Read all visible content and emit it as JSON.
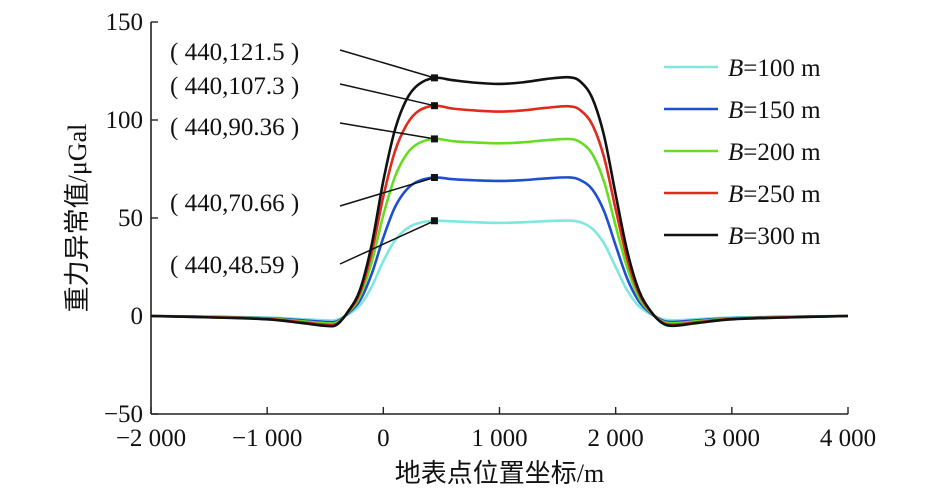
{
  "chart_data": {
    "type": "line",
    "title": "",
    "xlabel": "地表点位置坐标/m",
    "ylabel": "重力异常值/μGal",
    "xlim": [
      -2000,
      4000
    ],
    "ylim": [
      -50,
      150
    ],
    "xticks": [
      -2000,
      -1000,
      0,
      1000,
      2000,
      3000,
      4000
    ],
    "xtick_labels": [
      "−2 000",
      "−1 000",
      "0",
      "1 000",
      "2 000",
      "3 000",
      "4 000"
    ],
    "yticks": [
      -50,
      0,
      50,
      100,
      150
    ],
    "ytick_labels": [
      "−50",
      "0",
      "50",
      "100",
      "150"
    ],
    "grid": false,
    "legend_position": "top-right",
    "x": [
      -2000,
      -1500,
      -1000,
      -700,
      -500,
      -400,
      -300,
      -200,
      -100,
      0,
      100,
      200,
      300,
      440,
      600,
      800,
      1000,
      1200,
      1400,
      1600,
      1700,
      1800,
      1900,
      2000,
      2100,
      2200,
      2300,
      2400,
      2500,
      2700,
      3000,
      3500,
      4000
    ],
    "series": [
      {
        "name": "B=100 m",
        "color": "#7fe6e0",
        "values": [
          0,
          -0.3,
          -0.8,
          -1.6,
          -2.2,
          -2.0,
          1.0,
          5.5,
          15.0,
          28.0,
          38.5,
          44.5,
          47.3,
          48.59,
          48.3,
          47.8,
          47.5,
          47.8,
          48.4,
          48.7,
          47.8,
          44.5,
          37.0,
          25.0,
          13.0,
          5.0,
          1.0,
          -1.6,
          -2.2,
          -1.6,
          -0.8,
          -0.3,
          0
        ]
      },
      {
        "name": "B=150 m",
        "color": "#1f4fd1",
        "values": [
          0,
          -0.4,
          -1.1,
          -2.2,
          -3.0,
          -2.7,
          1.5,
          8.0,
          21.5,
          40.0,
          55.5,
          64.5,
          68.8,
          70.66,
          69.8,
          69.2,
          68.9,
          69.3,
          70.2,
          70.7,
          69.2,
          64.5,
          53.5,
          36.0,
          19.0,
          7.5,
          1.5,
          -2.2,
          -3.0,
          -2.2,
          -1.1,
          -0.4,
          0
        ]
      },
      {
        "name": "B=200 m",
        "color": "#66dd22",
        "values": [
          0,
          -0.5,
          -1.3,
          -2.7,
          -3.7,
          -3.3,
          1.9,
          10.2,
          27.5,
          51.5,
          71.0,
          82.5,
          88.0,
          90.36,
          89.2,
          88.5,
          88.1,
          88.6,
          89.7,
          90.3,
          88.5,
          82.5,
          68.5,
          46.0,
          24.5,
          9.5,
          1.9,
          -2.7,
          -3.7,
          -2.7,
          -1.3,
          -0.5,
          0
        ]
      },
      {
        "name": "B=250 m",
        "color": "#e02a1c",
        "values": [
          0,
          -0.6,
          -1.5,
          -3.2,
          -4.4,
          -3.9,
          2.3,
          12.0,
          32.5,
          61.0,
          84.0,
          97.5,
          104.5,
          107.3,
          105.8,
          104.8,
          104.3,
          104.9,
          106.2,
          107.0,
          104.8,
          97.5,
          81.0,
          54.5,
          29.0,
          11.5,
          2.3,
          -3.2,
          -4.4,
          -3.2,
          -1.5,
          -0.6,
          0
        ]
      },
      {
        "name": "B=300 m",
        "color": "#111111",
        "values": [
          0,
          -0.7,
          -1.7,
          -3.6,
          -5.0,
          -4.4,
          2.6,
          13.5,
          36.5,
          69.0,
          95.0,
          110.5,
          118.0,
          121.5,
          120.3,
          119.0,
          118.4,
          119.2,
          120.9,
          121.8,
          119.4,
          111.0,
          92.0,
          62.0,
          33.0,
          13.0,
          2.6,
          -3.6,
          -5.0,
          -3.6,
          -1.7,
          -0.7,
          0
        ]
      }
    ],
    "annotations": [
      {
        "text": "( 440,121.5 )",
        "x": 440,
        "y": 121.5
      },
      {
        "text": "( 440,107.3 )",
        "x": 440,
        "y": 107.3
      },
      {
        "text": "( 440,90.36 )",
        "x": 440,
        "y": 90.36
      },
      {
        "text": "( 440,70.66 )",
        "x": 440,
        "y": 70.66
      },
      {
        "text": "( 440,48.59 )",
        "x": 440,
        "y": 48.59
      }
    ]
  }
}
